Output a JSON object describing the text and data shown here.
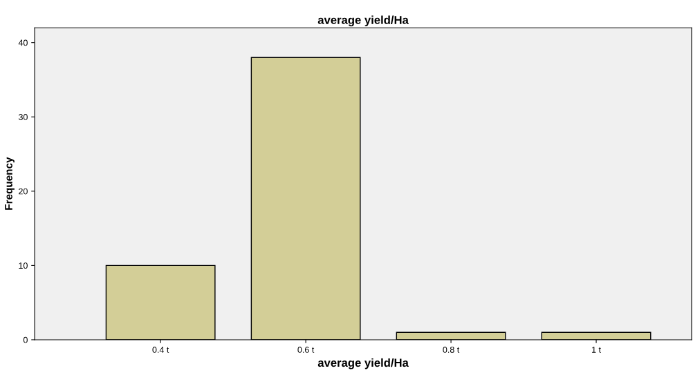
{
  "chart_data": {
    "type": "bar",
    "title": "average yield/Ha",
    "xlabel": "average yield/Ha",
    "ylabel": "Frequency",
    "categories": [
      "0.4 t",
      "0.6 t",
      "0.8 t",
      "1 t"
    ],
    "values": [
      10,
      38,
      1,
      1
    ],
    "color": "#d3ce97",
    "ylim": [
      0,
      42
    ],
    "yticks": [
      0,
      10,
      20,
      30,
      40
    ],
    "grid": false
  }
}
